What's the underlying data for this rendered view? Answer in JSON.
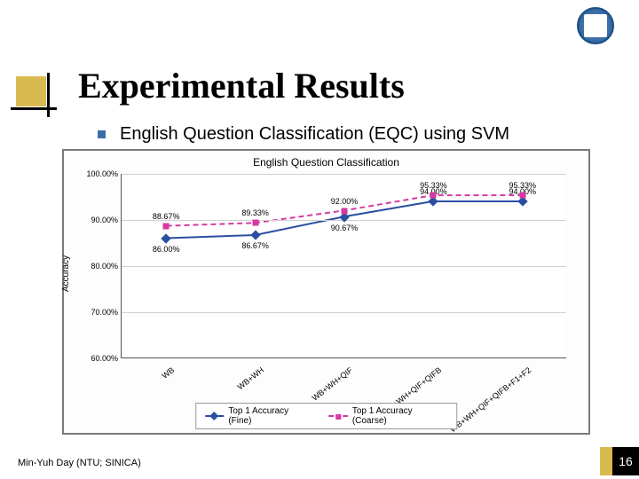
{
  "slide": {
    "title": "Experimental Results",
    "subtitle": "English Question Classification (EQC) using SVM"
  },
  "chart": {
    "type": "line",
    "title": "English Question Classification",
    "ylabel": "Accuracy",
    "ylim": [
      60,
      100
    ],
    "ytick_step": 10,
    "yticks": [
      "60.00%",
      "70.00%",
      "80.00%",
      "90.00%",
      "100.00%"
    ],
    "categories": [
      "WB",
      "WB+WH",
      "WB+WH+QIF",
      "WB+WH+QIF+QIFB",
      "WB+WH+QIF+QIFB+F1+F2"
    ],
    "series": [
      {
        "name": "Top 1 Accuracy (Fine)",
        "color": "#2a4ea1",
        "values": [
          86.0,
          86.67,
          90.67,
          94.0,
          94.0
        ],
        "marker": "diamond",
        "line_style": "solid",
        "labels": [
          "86.00%",
          "86.67%",
          "90.67%",
          "94.00%",
          "94.00%"
        ],
        "label_pos": [
          "below",
          "below",
          "below",
          "above",
          "above"
        ]
      },
      {
        "name": "Top 1 Accuracy (Coarse)",
        "color": "#d63aa1",
        "values": [
          88.67,
          89.33,
          92.0,
          95.33,
          95.33
        ],
        "marker": "square",
        "line_style": "dashed",
        "labels": [
          "88.67%",
          "89.33%",
          "92.00%",
          "95.33%",
          "95.33%"
        ],
        "label_pos": [
          "above",
          "above",
          "above",
          "above",
          "above"
        ]
      }
    ],
    "background_color": "#fdfdfd",
    "grid_color": "#d0d0d0",
    "border_color": "#7a7a7a",
    "legend_border": "#999999",
    "axis_color": "#555555",
    "title_fontsize": 12,
    "tick_fontsize": 9,
    "label_fontsize": 9
  },
  "footer": {
    "author": "Min-Yuh Day (NTU; SINICA)",
    "page_number": "16"
  },
  "style": {
    "accent_gold": "#d9ba51",
    "accent_black": "#000000",
    "logo_blue": "#3a6ea5"
  }
}
